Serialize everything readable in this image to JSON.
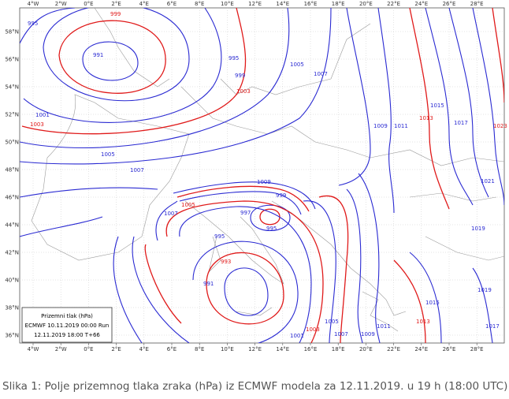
{
  "map": {
    "lon_labels": [
      "4°W",
      "2°W",
      "0°E",
      "2°E",
      "4°E",
      "6°E",
      "8°E",
      "10°E",
      "12°E",
      "14°E",
      "16°E",
      "18°E",
      "20°E",
      "22°E",
      "24°E",
      "26°E",
      "28°E"
    ],
    "lat_labels": [
      "58°N",
      "56°N",
      "54°N",
      "52°N",
      "50°N",
      "48°N",
      "46°N",
      "44°N",
      "42°N",
      "40°N",
      "38°N",
      "36°N"
    ],
    "isobar_labels": [
      "995",
      "999",
      "991",
      "995",
      "999",
      "1003",
      "1005",
      "1007",
      "1001",
      "1003",
      "1005",
      "1007",
      "1009",
      "1011",
      "1013",
      "1015",
      "1017",
      "1023",
      "1021",
      "1019",
      "1009",
      "999",
      "995",
      "997",
      "1007",
      "1005",
      "995",
      "993",
      "991",
      "1001",
      "1003",
      "1005",
      "1007",
      "1009",
      "1011",
      "1013",
      "1015",
      "1019",
      "1017"
    ]
  },
  "legend": {
    "title": "Prizemni tlak (hPa)",
    "run": "ECMWF 10.11.2019  00:00 Run",
    "valid": "12.11.2019 18:00  T+66"
  },
  "caption": "Slika 1: Polje prizemnog tlaka zraka (hPa) iz ECMWF modela za 12.11.2019. u 19 h (18:00 UTC)"
}
